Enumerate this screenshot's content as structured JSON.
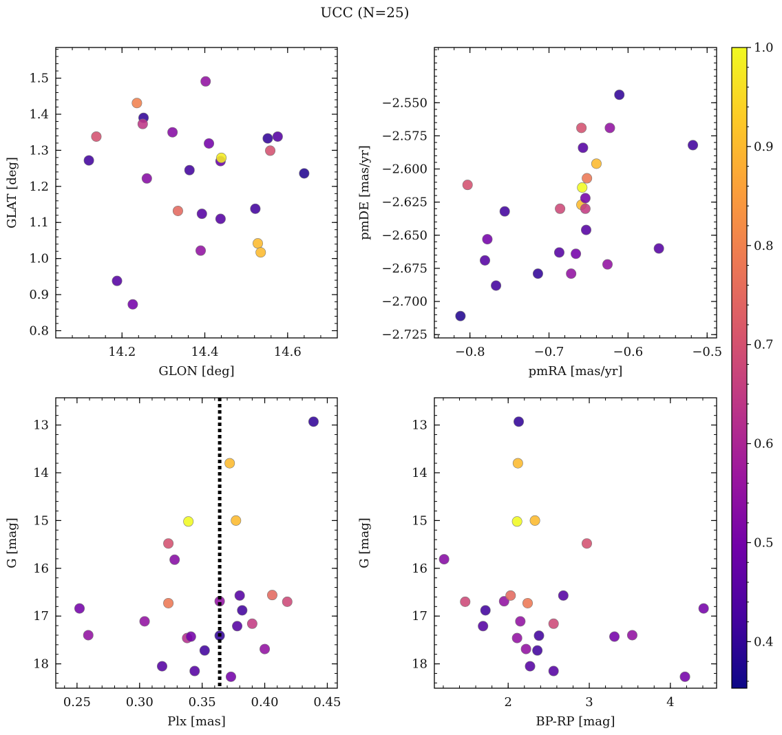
{
  "title": "UCC (N=25)",
  "colormap": {
    "name": "plasma",
    "range": [
      0.353,
      1.0
    ],
    "ticks": [
      0.4,
      0.5,
      0.6,
      0.7,
      0.8,
      0.9,
      1.0
    ],
    "tick_labels": [
      "0.4",
      "0.5",
      "0.6",
      "0.7",
      "0.8",
      "0.9",
      "1.0"
    ],
    "stops": [
      "#0d0887",
      "#46039f",
      "#7201a8",
      "#9c179e",
      "#bd3786",
      "#d8576b",
      "#ed7953",
      "#fb9f3a",
      "#fdca26",
      "#f0f921"
    ]
  },
  "chart_data": [
    {
      "type": "scatter",
      "xlabel": "GLON [deg]",
      "ylabel": "GLAT [deg]",
      "xlim": [
        14.04,
        14.72
      ],
      "ylim": [
        0.78,
        1.585
      ],
      "x_ticks": [
        14.2,
        14.4,
        14.6
      ],
      "x_tick_labels": [
        "14.2",
        "14.4",
        "14.6"
      ],
      "y_ticks": [
        0.8,
        0.9,
        1.0,
        1.1,
        1.2,
        1.3,
        1.4,
        1.5
      ],
      "y_tick_labels": [
        "0.8",
        "0.9",
        "1.0",
        "1.1",
        "1.2",
        "1.3",
        "1.4",
        "1.5"
      ],
      "points": [
        {
          "x": 14.12,
          "y": 1.272,
          "c": 0.42
        },
        {
          "x": 14.138,
          "y": 1.338,
          "c": 0.7
        },
        {
          "x": 14.188,
          "y": 0.938,
          "c": 0.45
        },
        {
          "x": 14.226,
          "y": 0.873,
          "c": 0.5
        },
        {
          "x": 14.236,
          "y": 1.431,
          "c": 0.8
        },
        {
          "x": 14.252,
          "y": 1.39,
          "c": 0.4
        },
        {
          "x": 14.25,
          "y": 1.373,
          "c": 0.64
        },
        {
          "x": 14.26,
          "y": 1.222,
          "c": 0.53
        },
        {
          "x": 14.322,
          "y": 1.35,
          "c": 0.53
        },
        {
          "x": 14.335,
          "y": 1.132,
          "c": 0.75
        },
        {
          "x": 14.363,
          "y": 1.245,
          "c": 0.42
        },
        {
          "x": 14.39,
          "y": 1.022,
          "c": 0.55
        },
        {
          "x": 14.393,
          "y": 1.124,
          "c": 0.45
        },
        {
          "x": 14.402,
          "y": 1.491,
          "c": 0.55
        },
        {
          "x": 14.41,
          "y": 1.319,
          "c": 0.5
        },
        {
          "x": 14.438,
          "y": 1.27,
          "c": 0.48
        },
        {
          "x": 14.44,
          "y": 1.279,
          "c": 0.98
        },
        {
          "x": 14.438,
          "y": 1.11,
          "c": 0.45
        },
        {
          "x": 14.522,
          "y": 1.138,
          "c": 0.42
        },
        {
          "x": 14.528,
          "y": 1.042,
          "c": 0.9
        },
        {
          "x": 14.535,
          "y": 1.017,
          "c": 0.9
        },
        {
          "x": 14.552,
          "y": 1.333,
          "c": 0.4
        },
        {
          "x": 14.558,
          "y": 1.299,
          "c": 0.7
        },
        {
          "x": 14.576,
          "y": 1.338,
          "c": 0.45
        },
        {
          "x": 14.64,
          "y": 1.236,
          "c": 0.38
        }
      ]
    },
    {
      "type": "scatter",
      "xlabel": "pmRA [mas/yr]",
      "ylabel": "pmDE [mas/yr]",
      "xlim": [
        -0.845,
        -0.488
      ],
      "ylim": [
        -2.7275,
        -2.5083
      ],
      "x_ticks": [
        -0.8,
        -0.7,
        -0.6,
        -0.5
      ],
      "x_tick_labels": [
        "−0.8",
        "−0.7",
        "−0.6",
        "−0.5"
      ],
      "y_ticks": [
        -2.725,
        -2.7,
        -2.675,
        -2.65,
        -2.625,
        -2.6,
        -2.575,
        -2.55
      ],
      "y_tick_labels": [
        "−2.725",
        "−2.700",
        "−2.675",
        "−2.650",
        "−2.625",
        "−2.600",
        "−2.575",
        "−2.550"
      ],
      "points": [
        {
          "x": -0.812,
          "y": -2.711,
          "c": 0.38
        },
        {
          "x": -0.803,
          "y": -2.612,
          "c": 0.7
        },
        {
          "x": -0.781,
          "y": -2.669,
          "c": 0.45
        },
        {
          "x": -0.778,
          "y": -2.653,
          "c": 0.5
        },
        {
          "x": -0.767,
          "y": -2.688,
          "c": 0.42
        },
        {
          "x": -0.756,
          "y": -2.632,
          "c": 0.42
        },
        {
          "x": -0.714,
          "y": -2.679,
          "c": 0.4
        },
        {
          "x": -0.687,
          "y": -2.663,
          "c": 0.45
        },
        {
          "x": -0.686,
          "y": -2.63,
          "c": 0.68
        },
        {
          "x": -0.672,
          "y": -2.679,
          "c": 0.55
        },
        {
          "x": -0.666,
          "y": -2.664,
          "c": 0.5
        },
        {
          "x": -0.659,
          "y": -2.569,
          "c": 0.7
        },
        {
          "x": -0.659,
          "y": -2.627,
          "c": 0.9
        },
        {
          "x": -0.658,
          "y": -2.614,
          "c": 1.0
        },
        {
          "x": -0.657,
          "y": -2.584,
          "c": 0.45
        },
        {
          "x": -0.654,
          "y": -2.622,
          "c": 0.5
        },
        {
          "x": -0.654,
          "y": -2.63,
          "c": 0.65
        },
        {
          "x": -0.653,
          "y": -2.646,
          "c": 0.45
        },
        {
          "x": -0.652,
          "y": -2.607,
          "c": 0.78
        },
        {
          "x": -0.64,
          "y": -2.596,
          "c": 0.9
        },
        {
          "x": -0.626,
          "y": -2.672,
          "c": 0.55
        },
        {
          "x": -0.623,
          "y": -2.569,
          "c": 0.55
        },
        {
          "x": -0.611,
          "y": -2.544,
          "c": 0.4
        },
        {
          "x": -0.561,
          "y": -2.66,
          "c": 0.45
        },
        {
          "x": -0.518,
          "y": -2.582,
          "c": 0.42
        }
      ]
    },
    {
      "type": "scatter",
      "xlabel": "Plx [mas]",
      "ylabel": "G [mag]",
      "y_inverted": true,
      "xlim": [
        0.233,
        0.458
      ],
      "ylim": [
        12.43,
        18.51
      ],
      "x_ticks": [
        0.25,
        0.3,
        0.35,
        0.4,
        0.45
      ],
      "x_tick_labels": [
        "0.25",
        "0.30",
        "0.35",
        "0.40",
        "0.45"
      ],
      "y_ticks": [
        13,
        14,
        15,
        16,
        17,
        18
      ],
      "y_tick_labels": [
        "13",
        "14",
        "15",
        "16",
        "17",
        "18"
      ],
      "vline": {
        "x": 0.364,
        "style": "dotted"
      },
      "points": [
        {
          "x": 0.252,
          "y": 16.84,
          "c": 0.5
        },
        {
          "x": 0.259,
          "y": 17.4,
          "c": 0.55
        },
        {
          "x": 0.304,
          "y": 17.11,
          "c": 0.55
        },
        {
          "x": 0.318,
          "y": 18.05,
          "c": 0.45
        },
        {
          "x": 0.323,
          "y": 15.48,
          "c": 0.7
        },
        {
          "x": 0.323,
          "y": 16.73,
          "c": 0.78
        },
        {
          "x": 0.328,
          "y": 15.82,
          "c": 0.53
        },
        {
          "x": 0.338,
          "y": 17.46,
          "c": 0.62
        },
        {
          "x": 0.339,
          "y": 15.02,
          "c": 1.0
        },
        {
          "x": 0.341,
          "y": 17.43,
          "c": 0.5
        },
        {
          "x": 0.344,
          "y": 18.15,
          "c": 0.45
        },
        {
          "x": 0.352,
          "y": 17.72,
          "c": 0.42
        },
        {
          "x": 0.364,
          "y": 16.69,
          "c": 0.55
        },
        {
          "x": 0.364,
          "y": 17.41,
          "c": 0.4
        },
        {
          "x": 0.372,
          "y": 13.8,
          "c": 0.9
        },
        {
          "x": 0.373,
          "y": 18.27,
          "c": 0.5
        },
        {
          "x": 0.377,
          "y": 15.0,
          "c": 0.9
        },
        {
          "x": 0.378,
          "y": 17.21,
          "c": 0.45
        },
        {
          "x": 0.38,
          "y": 16.57,
          "c": 0.45
        },
        {
          "x": 0.382,
          "y": 16.88,
          "c": 0.42
        },
        {
          "x": 0.39,
          "y": 17.16,
          "c": 0.65
        },
        {
          "x": 0.4,
          "y": 17.69,
          "c": 0.55
        },
        {
          "x": 0.406,
          "y": 16.56,
          "c": 0.75
        },
        {
          "x": 0.418,
          "y": 16.7,
          "c": 0.68
        },
        {
          "x": 0.439,
          "y": 12.93,
          "c": 0.4
        }
      ]
    },
    {
      "type": "scatter",
      "xlabel": "BP-RP [mag]",
      "ylabel": "G [mag]",
      "y_inverted": true,
      "xlim": [
        1.09,
        4.57
      ],
      "ylim": [
        12.43,
        18.51
      ],
      "x_ticks": [
        2,
        3,
        4
      ],
      "x_tick_labels": [
        "2",
        "3",
        "4"
      ],
      "y_ticks": [
        13,
        14,
        15,
        16,
        17,
        18
      ],
      "y_tick_labels": [
        "13",
        "14",
        "15",
        "16",
        "17",
        "18"
      ],
      "points": [
        {
          "x": 1.21,
          "y": 15.81,
          "c": 0.53
        },
        {
          "x": 1.47,
          "y": 16.7,
          "c": 0.68
        },
        {
          "x": 1.69,
          "y": 17.21,
          "c": 0.45
        },
        {
          "x": 1.72,
          "y": 16.88,
          "c": 0.42
        },
        {
          "x": 1.95,
          "y": 16.69,
          "c": 0.55
        },
        {
          "x": 2.03,
          "y": 16.57,
          "c": 0.75
        },
        {
          "x": 2.11,
          "y": 17.46,
          "c": 0.55
        },
        {
          "x": 2.11,
          "y": 15.02,
          "c": 1.0
        },
        {
          "x": 2.12,
          "y": 13.8,
          "c": 0.9
        },
        {
          "x": 2.13,
          "y": 12.93,
          "c": 0.4
        },
        {
          "x": 2.15,
          "y": 17.11,
          "c": 0.55
        },
        {
          "x": 2.22,
          "y": 17.69,
          "c": 0.55
        },
        {
          "x": 2.24,
          "y": 16.73,
          "c": 0.78
        },
        {
          "x": 2.27,
          "y": 18.05,
          "c": 0.45
        },
        {
          "x": 2.33,
          "y": 15.0,
          "c": 0.9
        },
        {
          "x": 2.36,
          "y": 17.72,
          "c": 0.42
        },
        {
          "x": 2.38,
          "y": 17.41,
          "c": 0.42
        },
        {
          "x": 2.56,
          "y": 17.16,
          "c": 0.68
        },
        {
          "x": 2.56,
          "y": 18.15,
          "c": 0.45
        },
        {
          "x": 2.68,
          "y": 16.57,
          "c": 0.45
        },
        {
          "x": 2.97,
          "y": 15.48,
          "c": 0.7
        },
        {
          "x": 3.31,
          "y": 17.43,
          "c": 0.5
        },
        {
          "x": 3.53,
          "y": 17.4,
          "c": 0.55
        },
        {
          "x": 4.18,
          "y": 18.27,
          "c": 0.5
        },
        {
          "x": 4.41,
          "y": 16.84,
          "c": 0.5
        }
      ]
    }
  ]
}
